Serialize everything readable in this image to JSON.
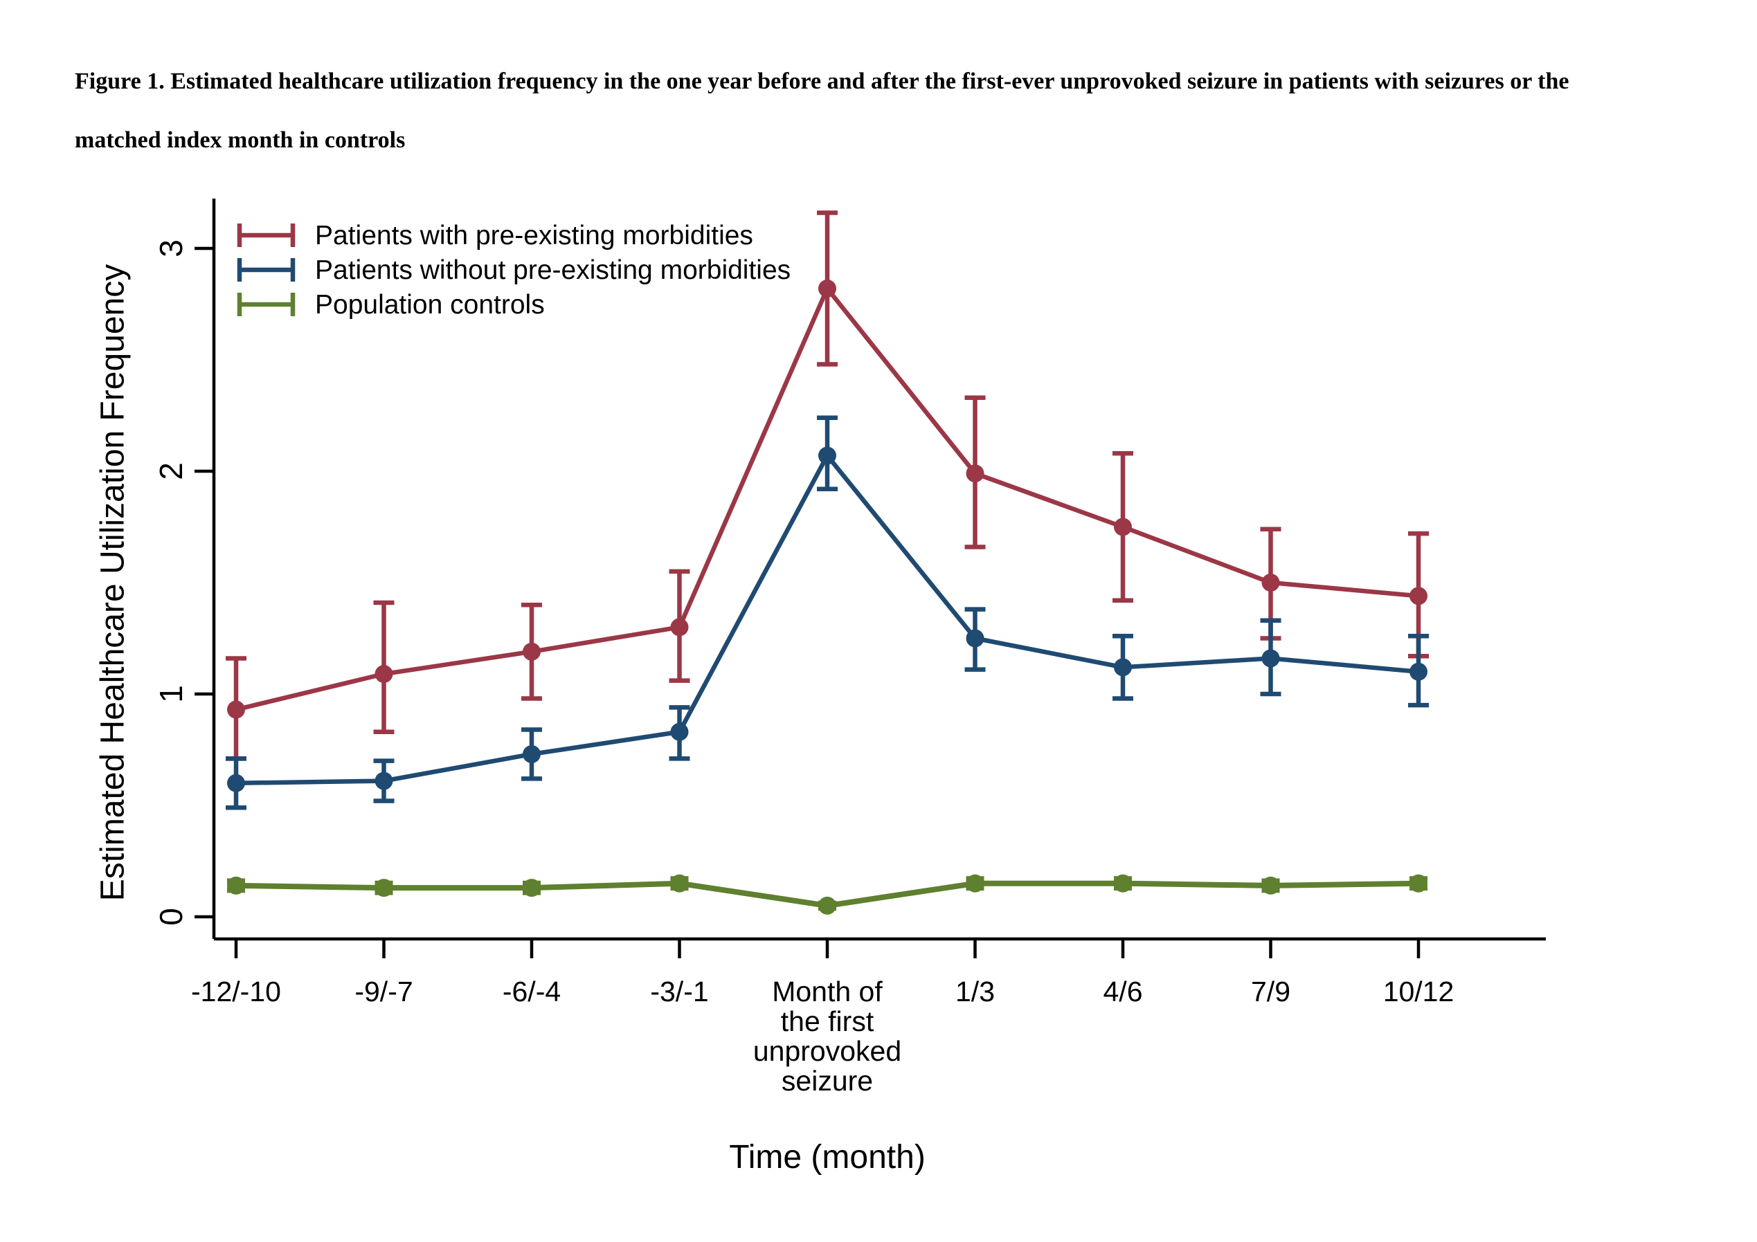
{
  "caption": {
    "line1": "Figure 1. Estimated healthcare utilization frequency in the one year before and after the first-ever unprovoked seizure in patients with seizures or the",
    "line2": "matched index month in controls"
  },
  "chart_data": {
    "type": "line",
    "title": "Figure 1. Estimated healthcare utilization frequency in the one year before and after the first-ever unprovoked seizure in patients with seizures or the matched index month in controls",
    "xlabel": "Time (month)",
    "ylabel": "Estimated Healthcare Utilization Frequency",
    "categories": [
      "-12/-10",
      "-9/-7",
      "-6/-4",
      "-3/-1",
      "Month of\nthe first\nunprovoked\nseizure",
      "1/3",
      "4/6",
      "7/9",
      "10/12"
    ],
    "yticks": [
      0,
      1,
      2,
      3
    ],
    "ylim": [
      0,
      3.2
    ],
    "grid": false,
    "legend_position": "top-left-inside",
    "error_bars": true,
    "series": [
      {
        "name": "Patients with pre-existing morbidities",
        "color": "#9B3746",
        "marker": "circle",
        "values": [
          0.93,
          1.09,
          1.19,
          1.3,
          2.82,
          1.99,
          1.75,
          1.5,
          1.44
        ],
        "ci_low": [
          0.71,
          0.83,
          0.98,
          1.06,
          2.48,
          1.66,
          1.42,
          1.25,
          1.17
        ],
        "ci_high": [
          1.16,
          1.41,
          1.4,
          1.55,
          3.16,
          2.33,
          2.08,
          1.74,
          1.72
        ]
      },
      {
        "name": "Patients without pre-existing morbidities",
        "color": "#1F4A72",
        "marker": "circle",
        "values": [
          0.6,
          0.61,
          0.73,
          0.83,
          2.07,
          1.25,
          1.12,
          1.16,
          1.1
        ],
        "ci_low": [
          0.49,
          0.52,
          0.62,
          0.71,
          1.92,
          1.11,
          0.98,
          1.0,
          0.95
        ],
        "ci_high": [
          0.71,
          0.7,
          0.84,
          0.94,
          2.24,
          1.38,
          1.26,
          1.33,
          1.26
        ]
      },
      {
        "name": "Population controls",
        "color": "#5F802F",
        "marker": "circle",
        "values": [
          0.14,
          0.13,
          0.13,
          0.15,
          0.05,
          0.15,
          0.15,
          0.14,
          0.15
        ],
        "ci_low": [
          0.12,
          0.11,
          0.11,
          0.13,
          0.04,
          0.13,
          0.13,
          0.12,
          0.13
        ],
        "ci_high": [
          0.16,
          0.15,
          0.15,
          0.17,
          0.06,
          0.17,
          0.17,
          0.16,
          0.17
        ]
      }
    ]
  }
}
